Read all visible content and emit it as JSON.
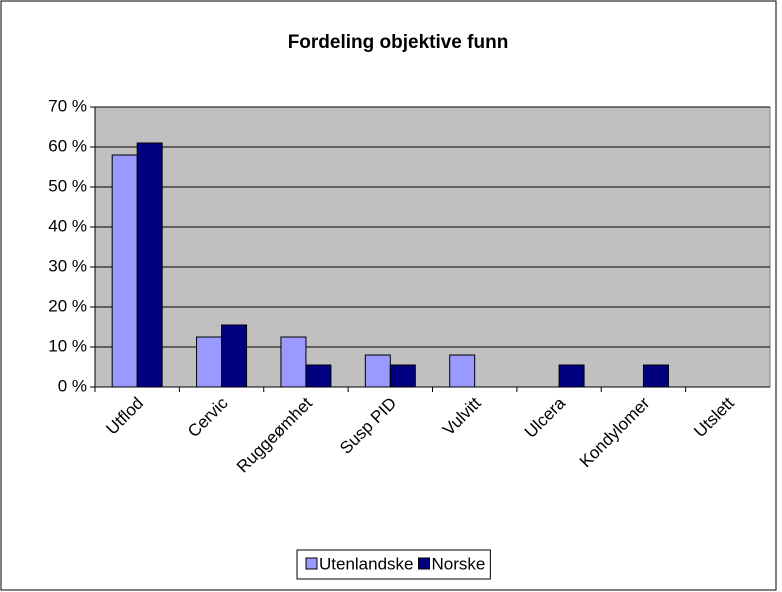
{
  "chart_data": {
    "type": "bar",
    "title": "Fordeling objektive funn",
    "categories": [
      "Utflod",
      "Cervic",
      "Ruggeømhet",
      "Susp PID",
      "Vulvitt",
      "Ulcera",
      "Kondylomer",
      "Utslett"
    ],
    "series": [
      {
        "name": "Utenlandske",
        "color": "#9999ff",
        "values": [
          58,
          12.5,
          12.5,
          8,
          8,
          0,
          0,
          0
        ]
      },
      {
        "name": "Norske",
        "color": "#000080",
        "values": [
          61,
          15.5,
          5.5,
          5.5,
          0,
          5.5,
          5.5,
          0
        ]
      }
    ],
    "ylim": [
      0,
      70
    ],
    "yticks": [
      {
        "value": 0,
        "label": "0 %"
      },
      {
        "value": 10,
        "label": "10 %"
      },
      {
        "value": 20,
        "label": "20 %"
      },
      {
        "value": 30,
        "label": "30 %"
      },
      {
        "value": 40,
        "label": "40 %"
      },
      {
        "value": 50,
        "label": "50 %"
      },
      {
        "value": 60,
        "label": "60 %"
      },
      {
        "value": 70,
        "label": "70 %"
      }
    ],
    "grid": true,
    "legend": "bottom"
  }
}
